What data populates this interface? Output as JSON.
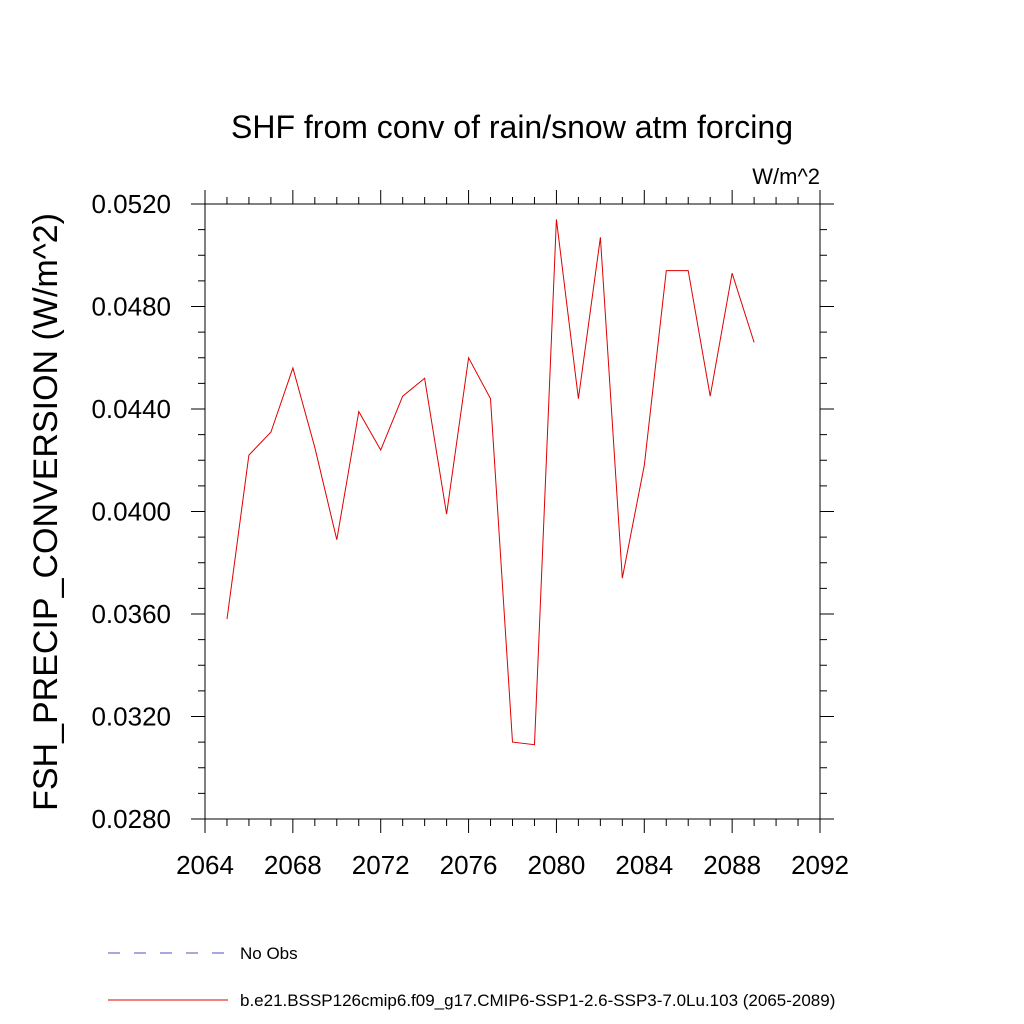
{
  "chart_data": {
    "type": "line",
    "title": "SHF from conv of rain/snow atm forcing",
    "units_label": "W/m^2",
    "xlabel": "",
    "ylabel": "FSH_PRECIP_CONVERSION  (W/m^2)",
    "xlim": [
      2064,
      2092
    ],
    "ylim": [
      0.028,
      0.052
    ],
    "x_ticks": [
      2064,
      2068,
      2072,
      2076,
      2080,
      2084,
      2088,
      2092
    ],
    "x_tick_labels": [
      "2064",
      "2068",
      "2072",
      "2076",
      "2080",
      "2084",
      "2088",
      "2092"
    ],
    "y_ticks": [
      0.028,
      0.032,
      0.036,
      0.04,
      0.044,
      0.048,
      0.052
    ],
    "y_tick_labels": [
      "0.0280",
      "0.0320",
      "0.0360",
      "0.0400",
      "0.0440",
      "0.0480",
      "0.0520"
    ],
    "grid": false,
    "legend_position": "bottom",
    "series": [
      {
        "name": "b.e21.BSSP126cmip6.f09_g17.CMIP6-SSP1-2.6-SSP3-7.0Lu.103 (2065-2089)",
        "color": "#e00000",
        "dash": "solid",
        "x": [
          2065,
          2066,
          2067,
          2068,
          2069,
          2070,
          2071,
          2072,
          2073,
          2074,
          2075,
          2076,
          2077,
          2078,
          2079,
          2080,
          2081,
          2082,
          2083,
          2084,
          2085,
          2086,
          2087,
          2088,
          2089
        ],
        "y": [
          0.0358,
          0.0422,
          0.0431,
          0.0456,
          0.0425,
          0.0389,
          0.0439,
          0.0424,
          0.0445,
          0.0452,
          0.0399,
          0.046,
          0.0444,
          0.031,
          0.0309,
          0.0514,
          0.0444,
          0.0507,
          0.0374,
          0.0418,
          0.0494,
          0.0494,
          0.0445,
          0.0493,
          0.0466
        ]
      }
    ],
    "legend": [
      {
        "label": "No Obs",
        "color": "#5050c0",
        "dash": "dashed"
      },
      {
        "label": "b.e21.BSSP126cmip6.f09_g17.CMIP6-SSP1-2.6-SSP3-7.0Lu.103 (2065-2089)",
        "color": "#e00000",
        "dash": "solid"
      }
    ]
  }
}
